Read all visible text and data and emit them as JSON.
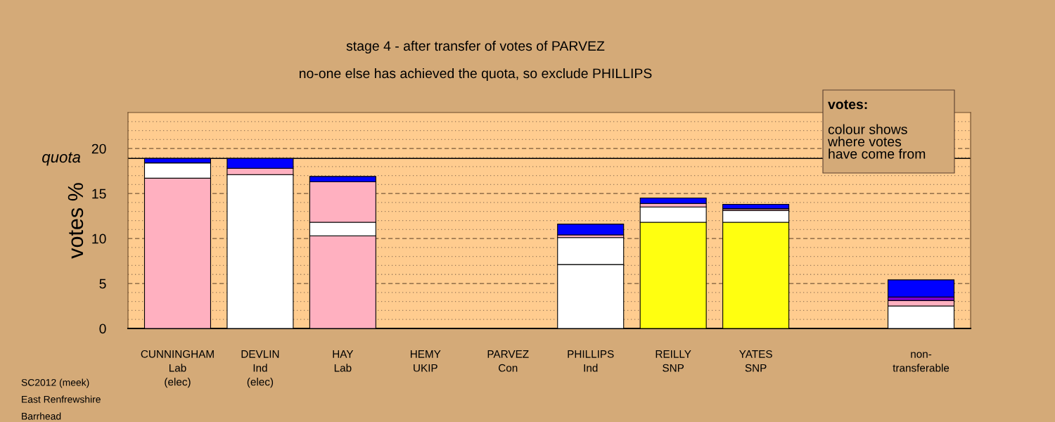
{
  "chart_data": {
    "type": "bar",
    "stacked": true,
    "title": "stage 4 - after transfer of votes of PARVEZ",
    "subtitle": "no-one else has achieved the quota, so exclude PHILLIPS",
    "ylabel": "votes %",
    "categories": [
      "CUNNINGHAM\nLab\n(elec)",
      "DEVLIN\nInd\n(elec)",
      "HAY\nLab",
      "HEMY\nUKIP",
      "PARVEZ\nCon",
      "PHILLIPS\nInd",
      "REILLY\nSNP",
      "YATES\nSNP",
      null,
      "non-\ntransferable"
    ],
    "series": [
      {
        "colors": [
          "#ffb0c0",
          "#ffffff",
          "#ffb0c0",
          "#000000",
          "#000000",
          "#ffffff",
          "#ffff10",
          "#ffff10",
          "#ffffff",
          "#ffffff"
        ],
        "values": [
          16.7,
          17.1,
          10.3,
          0,
          0,
          7.1,
          11.8,
          11.8,
          null,
          2.5
        ]
      },
      {
        "colors": [
          "#ffffff",
          "#ffb0c0",
          "#ffffff",
          "#ffffff",
          "#ffffff",
          "#ffffff",
          "#ffffff",
          "#ffffff",
          "#ffffff",
          "#ffb0c0"
        ],
        "values": [
          1.7,
          0.7,
          1.5,
          null,
          null,
          3.0,
          1.7,
          1.3,
          null,
          0.6
        ]
      },
      {
        "colors": [
          "#0000ff",
          "#0000ff",
          "#ffb0c0",
          "#ffb0c0",
          "#ffb0c0",
          "#ffb0c0",
          "#ffb0c0",
          "#ffb0c0",
          "#ffb0c0",
          "#8000d0"
        ],
        "values": [
          0.5,
          1.1,
          4.5,
          null,
          null,
          0.3,
          0.4,
          0.2,
          null,
          0.4
        ]
      },
      {
        "colors": [
          "#0000ff",
          "#0000ff",
          "#0000ff",
          "#0000ff",
          "#0000ff",
          "#0000ff",
          "#0000ff",
          "#0000ff",
          "#0000ff",
          "#0000ff"
        ],
        "values": [
          null,
          null,
          0.6,
          null,
          null,
          1.2,
          0.6,
          0.5,
          null,
          1.9
        ]
      }
    ],
    "ylim": [
      0,
      24
    ],
    "yticks": [
      0,
      {
        "value": 1,
        "label": null
      },
      {
        "value": 2,
        "label": null
      },
      {
        "value": 3,
        "label": null
      },
      {
        "value": 4,
        "label": null
      },
      5,
      {
        "value": 6,
        "label": null
      },
      {
        "value": 7,
        "label": null
      },
      {
        "value": 8,
        "label": null
      },
      {
        "value": 9,
        "label": null
      },
      10,
      {
        "value": 11,
        "label": null
      },
      {
        "value": 12,
        "label": null
      },
      {
        "value": 13,
        "label": null
      },
      {
        "value": 14,
        "label": null
      },
      15,
      {
        "value": 16,
        "label": null
      },
      {
        "value": 17,
        "label": null
      },
      {
        "value": 18,
        "label": null
      },
      {
        "value": 19,
        "label": null
      },
      20,
      {
        "value": 21,
        "label": null
      },
      {
        "value": 22,
        "label": null
      },
      {
        "value": 23,
        "label": null
      }
    ],
    "grid": "y",
    "ref_lines": [
      {
        "axis": "y",
        "value": 18.9,
        "label": "quota",
        "color": "#000000",
        "line_style": "solid"
      }
    ],
    "annotations": [
      "votes:\ncolour shows\nwhere votes\nhave come from",
      "SC2012 (meek)",
      "East Renfrewshire",
      "Barrhead"
    ]
  }
}
